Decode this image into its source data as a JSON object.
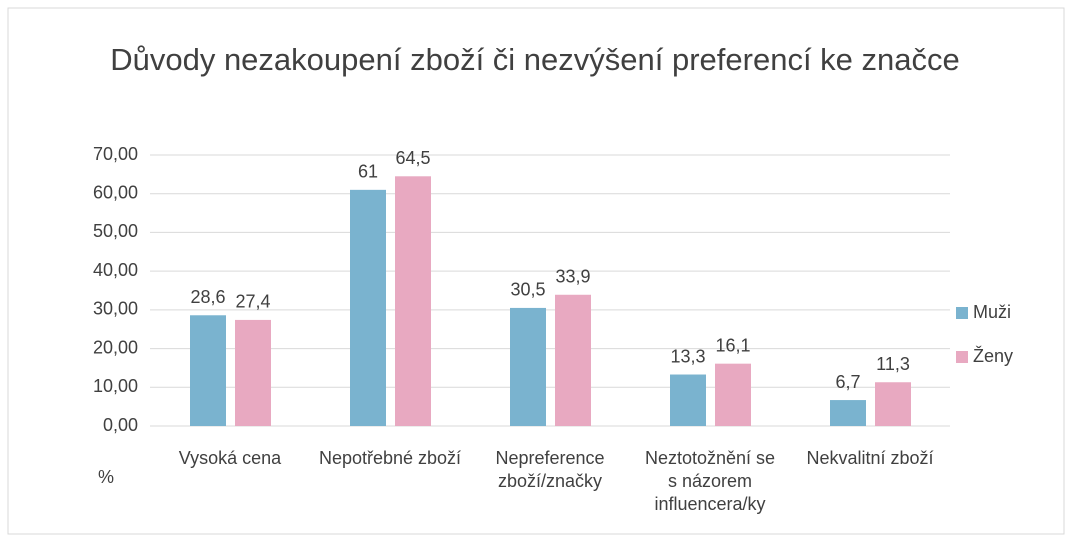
{
  "chart_data": {
    "type": "bar",
    "title": "Důvody nezakoupení zboží či nezvýšení preferencí ke značce",
    "ylabel": "%",
    "categories": [
      "Vysoká cena",
      "Nepotřebné zboží",
      "Nepreference zboží/značky",
      "Neztotožnění se s názorem influencera/ky",
      "Nekvalitní zboží"
    ],
    "series": [
      {
        "name": "Muži",
        "color": "#7ab3cf",
        "values": [
          28.6,
          61,
          30.5,
          13.3,
          6.7
        ],
        "value_labels": [
          "28,6",
          "61",
          "30,5",
          "13,3",
          "6,7"
        ]
      },
      {
        "name": "Ženy",
        "color": "#e8a9c1",
        "values": [
          27.4,
          64.5,
          33.9,
          16.1,
          11.3
        ],
        "value_labels": [
          "27,4",
          "64,5",
          "33,9",
          "16,1",
          "11,3"
        ]
      }
    ],
    "ylim": [
      0,
      70
    ],
    "yticks": [
      {
        "value": 0,
        "label": "0,00"
      },
      {
        "value": 10,
        "label": "10,00"
      },
      {
        "value": 20,
        "label": "20,00"
      },
      {
        "value": 30,
        "label": "30,00"
      },
      {
        "value": 40,
        "label": "40,00"
      },
      {
        "value": 50,
        "label": "50,00"
      },
      {
        "value": 60,
        "label": "60,00"
      },
      {
        "value": 70,
        "label": "70,00"
      }
    ],
    "grid": true,
    "legend": "right"
  }
}
